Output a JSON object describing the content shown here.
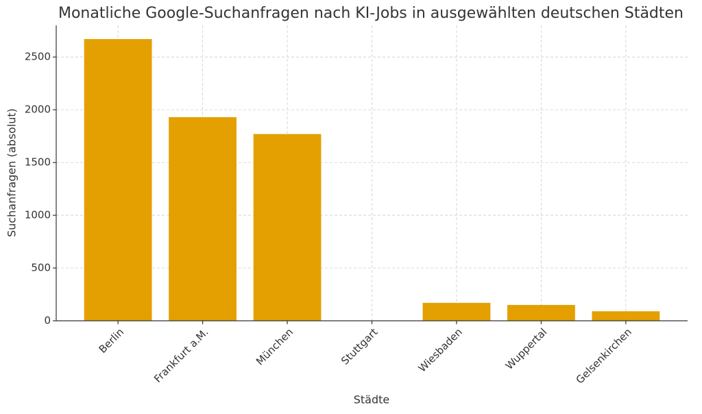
{
  "chart_data": {
    "type": "bar",
    "title": "Monatliche Google-Suchanfragen nach KI-Jobs in ausgewählten deutschen Städten",
    "x_label": "Städte",
    "y_label": "Suchanfragen (absolut)",
    "categories": [
      "Berlin",
      "Frankfurt a.M.",
      "München",
      "Stuttgart",
      "Wiesbaden",
      "Wuppertal",
      "Gelsenkirchen"
    ],
    "values": [
      2670,
      1930,
      1770,
      0,
      170,
      150,
      90
    ],
    "color": "#e3a000",
    "ylim": [
      0,
      2800
    ],
    "yticks": [
      0,
      500,
      1000,
      1500,
      2000,
      2500
    ],
    "grid": true
  }
}
